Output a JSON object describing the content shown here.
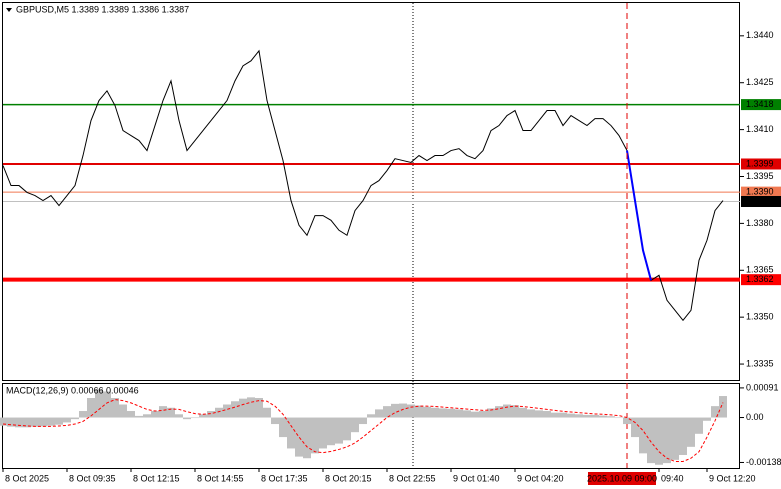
{
  "chart_data": [
    {
      "type": "line",
      "title": "GBPUSD,M5  1.3389 1.3389 1.3386 1.3387",
      "categories": [
        "8 Oct 2025",
        null,
        null,
        null,
        null,
        null,
        null,
        null,
        "8 Oct 09:35",
        null,
        null,
        null,
        null,
        null,
        null,
        null,
        "8 Oct 12:15",
        null,
        null,
        null,
        null,
        null,
        null,
        null,
        "8 Oct 14:55",
        null,
        null,
        null,
        null,
        null,
        null,
        null,
        "8 Oct 17:35",
        null,
        null,
        null,
        null,
        null,
        null,
        null,
        "8 Oct 20:15",
        null,
        null,
        null,
        null,
        null,
        null,
        null,
        "8 Oct 22:55",
        null,
        null,
        null,
        null,
        null,
        null,
        null,
        "9 Oct 01:40",
        null,
        null,
        null,
        null,
        null,
        null,
        null,
        "9 Oct 04:20",
        null,
        null,
        null,
        null,
        null,
        null,
        null,
        null,
        null,
        null,
        null,
        null,
        null,
        null,
        null,
        null,
        null,
        "09:40",
        null,
        null,
        null,
        null,
        null,
        "9 Oct 12:20",
        null,
        null
      ],
      "cursor_label": "2025.10.09 09:00",
      "series": [
        {
          "color": "#000000",
          "values": [
            1.33985,
            1.33921,
            1.33921,
            1.33899,
            1.33889,
            1.33873,
            1.33889,
            1.33857,
            1.33889,
            1.33921,
            1.34017,
            1.34129,
            1.34193,
            1.34224,
            1.34177,
            1.34097,
            1.34081,
            1.34065,
            1.34033,
            1.34113,
            1.34193,
            1.34256,
            1.34129,
            1.34033,
            1.34065,
            1.34097,
            1.34129,
            1.34161,
            1.34193,
            1.34256,
            1.34304,
            1.3432,
            1.34352,
            1.34193,
            1.34097,
            1.34001,
            1.33873,
            1.33794,
            1.33762,
            1.33825,
            1.33825,
            1.3381,
            1.33778,
            1.33762,
            1.33841,
            1.33873,
            1.33921,
            1.33937,
            1.33969,
            1.34007,
            1.34001,
            1.33995,
            1.34017,
            1.34001,
            1.34017,
            1.34017,
            1.34033,
            1.34039,
            1.34017,
            1.34007,
            1.34033,
            1.34097,
            1.34113,
            1.34145,
            1.34161,
            1.34097,
            1.34097,
            1.34129,
            1.34161,
            1.34161,
            1.34113,
            1.34145,
            1.34129,
            1.34113,
            1.34135,
            1.34135,
            1.34113,
            1.34081,
            1.34033,
            1.33873,
            1.33714,
            1.33618,
            1.33634,
            1.33554,
            1.33522,
            1.3349,
            1.33522,
            1.33682,
            1.33746,
            1.33841,
            1.33873
          ]
        },
        {
          "color": "#0000ff",
          "values": [
            null,
            null,
            null,
            null,
            null,
            null,
            null,
            null,
            null,
            null,
            null,
            null,
            null,
            null,
            null,
            null,
            null,
            null,
            null,
            null,
            null,
            null,
            null,
            null,
            null,
            null,
            null,
            null,
            null,
            null,
            null,
            null,
            null,
            null,
            null,
            null,
            null,
            null,
            null,
            null,
            null,
            null,
            null,
            null,
            null,
            null,
            null,
            null,
            null,
            null,
            null,
            null,
            null,
            null,
            null,
            null,
            null,
            null,
            null,
            null,
            null,
            null,
            null,
            null,
            null,
            null,
            null,
            null,
            null,
            null,
            null,
            null,
            null,
            null,
            null,
            null,
            null,
            null,
            1.34033,
            1.33873,
            1.33714,
            1.33618,
            null,
            null,
            null,
            null,
            null,
            null,
            null,
            null,
            null
          ]
        }
      ],
      "ylim": [
        1.33299,
        1.34505
      ],
      "yticks": [
        {
          "value": 1.344,
          "label": "1.3440"
        },
        1.3425,
        {
          "value": 1.341,
          "label": "1.3410"
        },
        1.3395,
        {
          "value": 1.338,
          "label": "1.3380"
        },
        1.3365,
        {
          "value": 1.335,
          "label": "1.3350"
        },
        1.3335
      ],
      "levels": [
        {
          "value": 1.3418,
          "color": "#008000"
        },
        {
          "value": 1.3399,
          "color": "#e00000"
        },
        {
          "value": {
            "value": 1.339,
            "label": "1.3390"
          },
          "color": "#f07850"
        },
        {
          "value": 1.3387,
          "color": "#c0c0c0",
          "label_fill": "#000000"
        },
        {
          "value": 1.3362,
          "color": "#ff0000"
        }
      ]
    },
    {
      "type": "bar",
      "title": "MACD(12,26,9) 0.00066 0.00046",
      "series": [
        {
          "color": "#c0c0c0",
          "values": [
            -0.00025,
            -0.00028,
            -0.0003,
            -0.0003,
            -0.00028,
            -0.00027,
            -0.00025,
            -0.00022,
            -0.00015,
            -5e-05,
            0.0002,
            0.0006,
            0.00088,
            0.0008,
            0.0006,
            0.0004,
            0.0002,
            5e-05,
            0.0001,
            0.0002,
            0.00035,
            0.0003,
            0.0001,
            -5e-05,
            0,
            0.0001,
            0.0002,
            0.0003,
            0.0004,
            0.0005,
            0.00058,
            0.00062,
            0.0006,
            0.0003,
            -0.0002,
            -0.0006,
            -0.00095,
            -0.0012,
            -0.00125,
            -0.0011,
            -0.00095,
            -0.00085,
            -0.0008,
            -0.0007,
            -0.00045,
            -0.0002,
            0.0001,
            0.00025,
            0.00035,
            0.00042,
            0.00043,
            0.0004,
            0.00037,
            0.00033,
            0.0003,
            0.00028,
            0.00027,
            0.00025,
            0.00022,
            0.00018,
            0.0002,
            0.00028,
            0.00035,
            0.0004,
            0.00038,
            0.0003,
            0.00025,
            0.00022,
            0.0002,
            0.00015,
            0.00015,
            0.00012,
            0.0001,
            8e-05,
            8e-05,
            6e-05,
            4e-05,
            0,
            -0.0002,
            -0.0006,
            -0.0011,
            -0.0014,
            -0.00145,
            -0.0014,
            -0.0013,
            -0.00115,
            -0.0009,
            -0.0005,
            -0.0001,
            0.00035,
            0.00066
          ]
        },
        {
          "type": "line",
          "color": "#ff0000",
          "dashed": true,
          "values": [
            -0.0002,
            -0.00022,
            -0.00024,
            -0.00026,
            -0.00027,
            -0.00027,
            -0.00027,
            -0.00026,
            -0.00024,
            -0.0002,
            -0.00012,
            5e-05,
            0.00025,
            0.00045,
            0.00055,
            0.00052,
            0.00045,
            0.00035,
            0.00025,
            0.0002,
            0.00022,
            0.00026,
            0.00025,
            0.00018,
            0.00012,
            0.0001,
            0.00012,
            0.00018,
            0.00025,
            0.00032,
            0.0004,
            0.00047,
            0.00052,
            0.0005,
            0.00035,
            0.0001,
            -0.00025,
            -0.0006,
            -0.0009,
            -0.00105,
            -0.00108,
            -0.00104,
            -0.00098,
            -0.0009,
            -0.00078,
            -0.0006,
            -0.0004,
            -0.0002,
            0,
            0.00015,
            0.00025,
            0.00032,
            0.00035,
            0.00035,
            0.00034,
            0.00032,
            0.0003,
            0.00028,
            0.00026,
            0.00024,
            0.00022,
            0.00023,
            0.00027,
            0.00032,
            0.00035,
            0.00034,
            0.00031,
            0.00028,
            0.00025,
            0.00022,
            0.00019,
            0.00017,
            0.00015,
            0.00013,
            0.00011,
            0.0001,
            8e-05,
            6e-05,
            0,
            -0.00015,
            -0.0004,
            -0.00075,
            -0.00105,
            -0.00125,
            -0.00135,
            -0.00135,
            -0.00125,
            -0.00105,
            -0.0006,
            -0.0001,
            0.00046
          ]
        }
      ],
      "ylim": [
        -0.00155,
        0.00103
      ],
      "yticks": [
        0.00091,
        {
          "value": 0,
          "label": "0.00"
        },
        -0.00138
      ]
    }
  ]
}
